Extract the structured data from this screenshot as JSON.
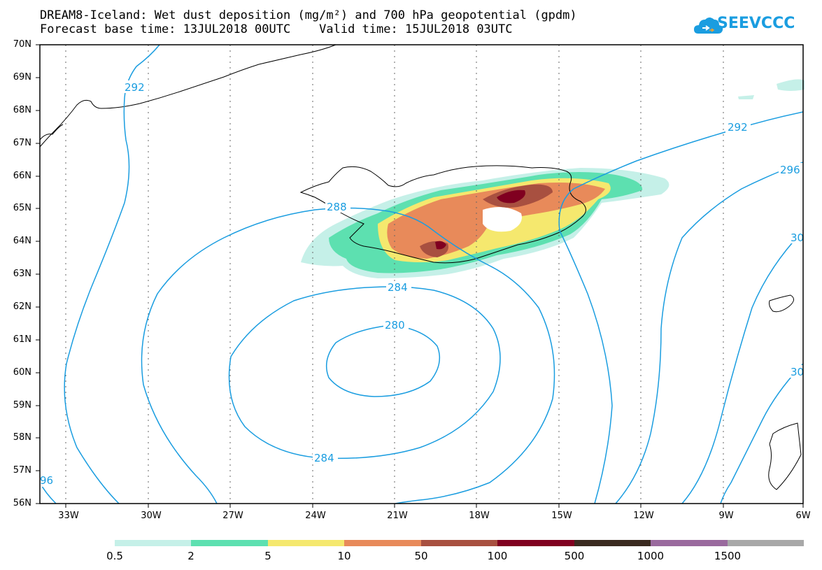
{
  "title_line1": "DREAM8-Iceland: Wet dust deposition (mg/m²) and 700 hPa geopotential (gpdm)",
  "title_line2": "Forecast base time: 13JUL2018 00UTC    Valid time: 15JUL2018 03UTC",
  "logo_text": "SEEVCCC",
  "logo_icon": "cloud-icon",
  "lat_labels": [
    "70N",
    "69N",
    "68N",
    "67N",
    "66N",
    "65N",
    "64N",
    "63N",
    "62N",
    "61N",
    "60N",
    "59N",
    "58N",
    "57N",
    "56N"
  ],
  "lon_labels": [
    "33W",
    "30W",
    "27W",
    "24W",
    "21W",
    "18W",
    "15W",
    "12W",
    "9W",
    "6W"
  ],
  "contour_labels": [
    "292",
    "292",
    "296",
    "288",
    "284",
    "280",
    "284",
    "30",
    "30",
    "96"
  ],
  "legend": {
    "labels": [
      "0.5",
      "2",
      "5",
      "10",
      "50",
      "100",
      "500",
      "1000",
      "1500"
    ],
    "colors": [
      "#c5f0e8",
      "#5de0b0",
      "#f5e86e",
      "#e88a5a",
      "#a85040",
      "#800020",
      "#3a2a20",
      "#9a6a9e",
      "#a8a8a8"
    ]
  },
  "colors": {
    "contour": "#1a9de0",
    "coastline": "#000000",
    "frame": "#000000"
  }
}
